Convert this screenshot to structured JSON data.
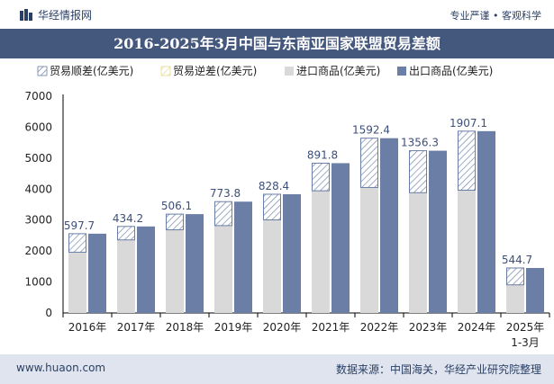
{
  "header": {
    "brand": "华经情报网",
    "tagline": "专业严谨 • 客观科学"
  },
  "footer": {
    "site": "www.huaon.com",
    "source": "数据来源：中国海关，华经产业研究院整理"
  },
  "colors": {
    "title_bg": "#44577d",
    "import": "#d9d9d9",
    "export": "#6b7ea5",
    "surplus_stroke": "#6b7ea5",
    "deficit_stroke": "#e8d98a"
  },
  "chart_data": {
    "type": "bar",
    "title": "2016-2025年3月中国与东南亚国家联盟贸易差额",
    "categories": [
      "2016年",
      "2017年",
      "2018年",
      "2019年",
      "2020年",
      "2021年",
      "2022年",
      "2023年",
      "2024年",
      "2025年1-3月"
    ],
    "series": [
      {
        "name": "进口商品(亿美元)",
        "values": [
          1962,
          2360,
          2686,
          2821,
          3006,
          3946,
          4053,
          3884,
          3965,
          908
        ]
      },
      {
        "name": "出口商品(亿美元)",
        "values": [
          2560,
          2794,
          3192,
          3595,
          3834,
          4838,
          5645,
          5240,
          5872,
          1453
        ]
      },
      {
        "name": "贸易顺差(亿美元)",
        "values": [
          597.7,
          434.2,
          506.1,
          773.8,
          828.4,
          891.8,
          1592.4,
          1356.3,
          1907.1,
          544.7
        ]
      },
      {
        "name": "贸易逆差(亿美元)",
        "values": [
          0,
          0,
          0,
          0,
          0,
          0,
          0,
          0,
          0,
          0
        ]
      }
    ],
    "xlabel": "",
    "ylabel": "",
    "ylim": [
      0,
      7000
    ],
    "yticks": [
      0,
      1000,
      2000,
      3000,
      4000,
      5000,
      6000,
      7000
    ],
    "legend": "top",
    "grid": false
  }
}
